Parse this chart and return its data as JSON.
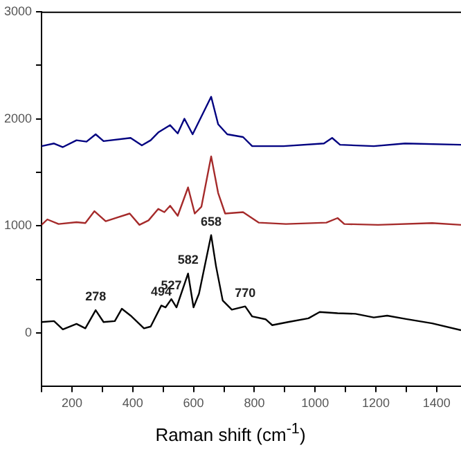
{
  "chart_data": {
    "type": "line",
    "xlabel": "Raman shift (cm$^{-1}$)",
    "xlim": [
      100,
      1480
    ],
    "xticks": [
      {
        "value": 100,
        "label": null
      },
      200,
      {
        "value": 300,
        "label": null
      },
      400,
      {
        "value": 500,
        "label": null
      },
      600,
      {
        "value": 700,
        "label": null
      },
      800,
      {
        "value": 900,
        "label": null
      },
      1000,
      {
        "value": 1100,
        "label": null
      },
      1200,
      {
        "value": 1300,
        "label": null
      },
      1400
    ],
    "ylim": [
      -500,
      3000
    ],
    "yticks": [
      0,
      {
        "value": 500,
        "label": null
      },
      1000,
      {
        "value": 1500,
        "label": null
      },
      2000,
      {
        "value": 2500,
        "label": null
      },
      3000
    ],
    "grid": false,
    "legend": false,
    "marker": "none",
    "line_style": "solid",
    "series": [
      {
        "color": "#000080",
        "x": [
          100,
          141,
          170,
          215,
          248,
          278,
          304,
          393,
          430,
          459,
          484,
          523,
          548,
          570,
          597,
          658,
          681,
          711,
          763,
          793,
          896,
          1029,
          1056,
          1082,
          1193,
          1296,
          1480
        ],
        "values": [
          1744,
          1769,
          1735,
          1799,
          1786,
          1855,
          1791,
          1821,
          1752,
          1799,
          1872,
          1940,
          1863,
          2000,
          1855,
          2205,
          1949,
          1855,
          1829,
          1744,
          1744,
          1769,
          1821,
          1757,
          1744,
          1769,
          1757
        ]
      },
      {
        "color": "#a52a2a",
        "x": [
          100,
          119,
          156,
          215,
          244,
          274,
          311,
          348,
          390,
          422,
          452,
          484,
          504,
          523,
          548,
          582,
          604,
          626,
          658,
          681,
          704,
          763,
          815,
          904,
          1037,
          1074,
          1096,
          1207,
          1385,
          1480
        ],
        "values": [
          1009,
          1060,
          1017,
          1034,
          1026,
          1137,
          1043,
          1077,
          1115,
          1009,
          1051,
          1158,
          1128,
          1188,
          1094,
          1359,
          1115,
          1179,
          1649,
          1307,
          1115,
          1128,
          1030,
          1017,
          1030,
          1073,
          1017,
          1009,
          1026,
          1009
        ]
      },
      {
        "color": "#000000",
        "x": [
          100,
          141,
          170,
          215,
          244,
          278,
          304,
          341,
          364,
          393,
          437,
          459,
          494,
          508,
          527,
          544,
          582,
          600,
          618,
          658,
          674,
          696,
          726,
          770,
          793,
          837,
          859,
          911,
          978,
          1015,
          1074,
          1133,
          1193,
          1237,
          1296,
          1385,
          1480
        ],
        "values": [
          102,
          111,
          34,
          85,
          43,
          213,
          102,
          111,
          226,
          162,
          43,
          60,
          256,
          239,
          316,
          239,
          555,
          239,
          367,
          914,
          623,
          303,
          218,
          248,
          154,
          128,
          73,
          102,
          137,
          196,
          184,
          179,
          145,
          162,
          132,
          90,
          26
        ]
      }
    ],
    "annotations": [
      {
        "text": "278",
        "x": 278,
        "y": 213
      },
      {
        "text": "494",
        "x": 494,
        "y": 256
      },
      {
        "text": "527",
        "x": 527,
        "y": 316
      },
      {
        "text": "582",
        "x": 582,
        "y": 555
      },
      {
        "text": "658",
        "x": 658,
        "y": 914
      },
      {
        "text": "770",
        "x": 770,
        "y": 248
      }
    ]
  }
}
